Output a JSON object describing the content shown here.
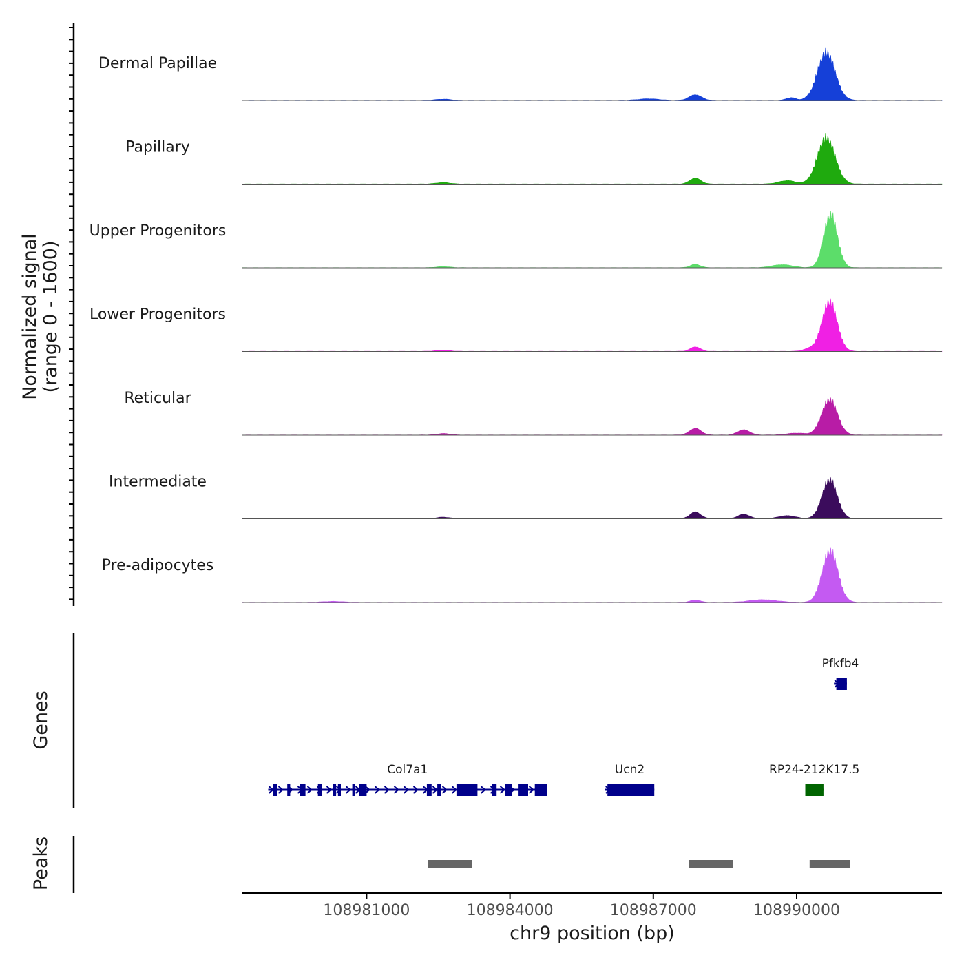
{
  "chart_data": {
    "type": "area",
    "title": "",
    "y_axis_label": "Normalized signal",
    "y_axis_range_label": "(range 0 - 1600)",
    "ylim": [
      0,
      1600
    ],
    "xlabel": "chr9 position (bp)",
    "xlim": [
      108978400,
      108993040
    ],
    "x_ticks": [
      108981000,
      108984000,
      108987000,
      108990000
    ],
    "x_tick_labels": [
      "108981000",
      "108984000",
      "108987000",
      "108990000"
    ],
    "tracks": [
      {
        "name": "Dermal Papillae",
        "color": "#1540d8",
        "peaks": [
          [
            108987880,
            150,
            180
          ],
          [
            108989880,
            70,
            140
          ],
          [
            108990620,
            1350,
            260
          ],
          [
            108986900,
            40,
            300
          ],
          [
            108982600,
            30,
            220
          ]
        ]
      },
      {
        "name": "Papillary",
        "color": "#1faa0e",
        "peaks": [
          [
            108987880,
            160,
            160
          ],
          [
            108990620,
            1300,
            260
          ],
          [
            108989800,
            90,
            250
          ],
          [
            108982600,
            40,
            200
          ]
        ]
      },
      {
        "name": "Upper Progenitors",
        "color": "#5cdd6a",
        "peaks": [
          [
            108987880,
            90,
            150
          ],
          [
            108990710,
            1500,
            200
          ],
          [
            108989700,
            80,
            300
          ],
          [
            108982600,
            30,
            200
          ]
        ]
      },
      {
        "name": "Lower Progenitors",
        "color": "#f020e4",
        "peaks": [
          [
            108987880,
            120,
            150
          ],
          [
            108990690,
            1400,
            220
          ],
          [
            108990300,
            80,
            200
          ],
          [
            108982600,
            35,
            200
          ]
        ]
      },
      {
        "name": "Reticular",
        "color": "#b81ca6",
        "peaks": [
          [
            108987880,
            180,
            170
          ],
          [
            108988890,
            140,
            180
          ],
          [
            108990690,
            1000,
            230
          ],
          [
            108990000,
            50,
            300
          ],
          [
            108982600,
            40,
            200
          ]
        ]
      },
      {
        "name": "Intermediate",
        "color": "#3b0c5c",
        "peaks": [
          [
            108987880,
            180,
            160
          ],
          [
            108988890,
            120,
            170
          ],
          [
            108990690,
            1100,
            220
          ],
          [
            108989800,
            80,
            250
          ],
          [
            108982600,
            40,
            200
          ]
        ]
      },
      {
        "name": "Pre-adipocytes",
        "color": "#c45af2",
        "peaks": [
          [
            108987880,
            60,
            150
          ],
          [
            108990700,
            1450,
            230
          ],
          [
            108989300,
            70,
            400
          ],
          [
            108980300,
            25,
            300
          ]
        ]
      }
    ],
    "genes_track_label": "Genes",
    "genes": [
      {
        "name": "Col7a1",
        "start": 108978940,
        "end": 108984770,
        "strand": "+",
        "color": "#00008b",
        "exons": [
          [
            108979040,
            108979120
          ],
          [
            108979340,
            108979400
          ],
          [
            108979600,
            108979720
          ],
          [
            108979980,
            108980060
          ],
          [
            108980300,
            108980360
          ],
          [
            108980400,
            108980460
          ],
          [
            108980700,
            108980760
          ],
          [
            108980850,
            108981000
          ],
          [
            108982260,
            108982360
          ],
          [
            108982480,
            108982560
          ],
          [
            108982880,
            108983320
          ],
          [
            108983620,
            108983720
          ],
          [
            108983900,
            108984040
          ],
          [
            108984180,
            108984380
          ],
          [
            108984520,
            108984770
          ]
        ]
      },
      {
        "name": "Ucn2",
        "start": 108985990,
        "end": 108987020,
        "strand": "+",
        "color": "#00008b",
        "exons": [
          [
            108986040,
            108987020
          ]
        ]
      },
      {
        "name": "RP24-212K17.5",
        "start": 108990180,
        "end": 108990560,
        "strand": "",
        "color": "#006400",
        "exons": [
          [
            108990180,
            108990560
          ]
        ]
      },
      {
        "name": "Pfkfb4",
        "start": 108990780,
        "end": 108991050,
        "strand": "+",
        "color": "#00008b",
        "exons": [
          [
            108990830,
            108991050
          ]
        ]
      }
    ],
    "peaks_track_label": "Peaks",
    "peak_regions": [
      [
        108982280,
        108983200
      ],
      [
        108987750,
        108988670
      ],
      [
        108990270,
        108991120
      ]
    ]
  }
}
